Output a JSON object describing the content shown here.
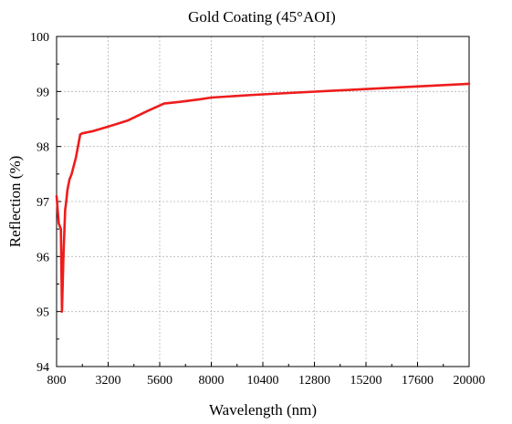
{
  "chart_data": {
    "type": "line",
    "title": "Gold Coating (45°AOI)",
    "xlabel": "Wavelength (nm)",
    "ylabel": "Reflection (%)",
    "xlim": [
      800,
      20000
    ],
    "ylim": [
      94,
      100
    ],
    "xticks": [
      800,
      3200,
      5600,
      8000,
      10400,
      12800,
      15200,
      17600,
      20000
    ],
    "yticks": [
      94,
      95,
      96,
      97,
      98,
      99,
      100
    ],
    "grid": true,
    "series": [
      {
        "color": "#ee1c1c",
        "x": [
          800,
          900,
          1000,
          1050,
          1120,
          1200,
          1250,
          1300,
          1400,
          1500,
          1700,
          1900,
          2000,
          2500,
          3200,
          4100,
          5000,
          5800,
          6500,
          7500,
          8000,
          10000,
          12000,
          14000,
          16000,
          18000,
          20000
        ],
        "y": [
          97.1,
          96.6,
          96.5,
          95.0,
          96.0,
          96.85,
          97.0,
          97.2,
          97.4,
          97.5,
          97.8,
          98.22,
          98.24,
          98.28,
          98.36,
          98.47,
          98.64,
          98.78,
          98.81,
          98.86,
          98.89,
          98.94,
          98.98,
          99.02,
          99.06,
          99.1,
          99.14
        ]
      }
    ]
  }
}
